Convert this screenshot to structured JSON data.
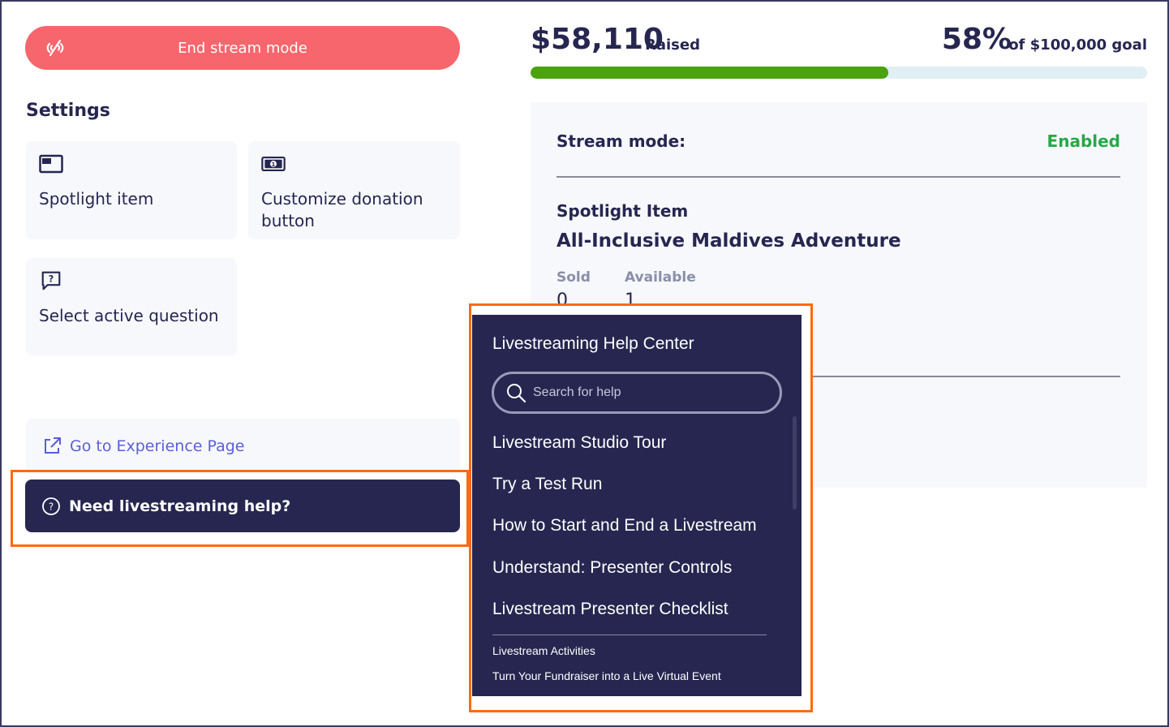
{
  "stream": {
    "end_button_label": "End stream mode"
  },
  "settings": {
    "title": "Settings",
    "tiles": [
      {
        "label": "Spotlight item",
        "icon": "spotlight-icon"
      },
      {
        "label": "Customize donation button",
        "icon": "money-icon"
      },
      {
        "label": "Select active question",
        "icon": "question-bubble-icon"
      }
    ]
  },
  "experience_link": {
    "label": "Go to Experience Page",
    "icon": "external-link-icon"
  },
  "help_button": {
    "label": "Need livestreaming help?",
    "icon": "question-circle-icon"
  },
  "fundraising": {
    "raised_amount": "$58,110",
    "raised_label": "Raised",
    "percent": "58%",
    "goal_label": "of $100,000 goal",
    "progress_fraction": 0.58
  },
  "panel": {
    "stream_mode_label": "Stream mode:",
    "stream_mode_value": "Enabled",
    "spotlight_label": "Spotlight Item",
    "spotlight_name": "All-Inclusive Maldives Adventure",
    "sold_label": "Sold",
    "sold_value": "0",
    "available_label": "Available",
    "available_value": "1"
  },
  "help_center": {
    "title": "Livestreaming Help Center",
    "search_placeholder": "Search for help",
    "links": [
      "Livestream Studio Tour",
      "Try a Test Run",
      "How to Start and End a Livestream",
      "Understand: Presenter Controls",
      "Livestream Presenter Checklist"
    ],
    "secondary_links": [
      "Livestream Activities",
      "Turn Your Fundraiser into a Live Virtual Event"
    ]
  },
  "colors": {
    "navy": "#262650",
    "coral": "#f7666d",
    "progress_green": "#4aa20f",
    "enabled_green": "#27a84a",
    "highlight_orange": "#ff6a13",
    "link_purple": "#5b5fd6"
  }
}
